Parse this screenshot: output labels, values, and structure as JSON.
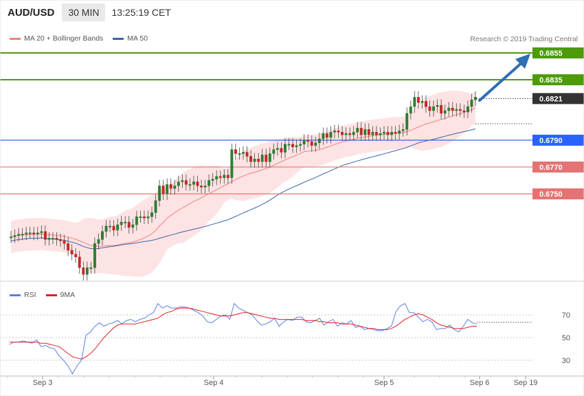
{
  "header": {
    "symbol": "AUD/USD",
    "timeframe": "30 MIN",
    "time": "13:25:19 CET"
  },
  "legend": {
    "items": [
      {
        "label": "MA 20 + Bollinger Bands",
        "color": "#f08080"
      },
      {
        "label": "MA 50",
        "color": "#3a63a8"
      }
    ],
    "copyright": "Research © 2019 Trading Central"
  },
  "rsi_legend": {
    "items": [
      {
        "label": "RSI",
        "color": "#5b7fe0"
      },
      {
        "label": "9MA",
        "color": "#e02020"
      }
    ]
  },
  "colors": {
    "up": "#2e7d32",
    "down": "#c62828",
    "band": "#fde3e3",
    "target": "#4d9a0a",
    "pivot": "#2962ff",
    "support": "#e57373",
    "current": "#333333",
    "arrow": "#2e6fb5"
  },
  "chart_data": [
    {
      "type": "candlestick",
      "title": "AUD/USD 30 MIN",
      "ylim": [
        0.67,
        0.6865
      ],
      "x_ticks": [
        "Sep 3",
        "Sep 4",
        "Sep 5",
        "Sep 6",
        "Sep 19"
      ],
      "levels": [
        {
          "value": "0.6855",
          "kind": "target"
        },
        {
          "value": "0.6835",
          "kind": "target"
        },
        {
          "value": "0.6821",
          "kind": "current"
        },
        {
          "value": "0.6790",
          "kind": "pivot"
        },
        {
          "value": "0.6770",
          "kind": "support"
        },
        {
          "value": "0.6750",
          "kind": "support"
        }
      ],
      "closes": [
        0.6718,
        0.6719,
        0.672,
        0.672,
        0.6721,
        0.6721,
        0.672,
        0.6721,
        0.6722,
        0.6716,
        0.6717,
        0.6717,
        0.6716,
        0.6715,
        0.6713,
        0.6708,
        0.6705,
        0.6703,
        0.6695,
        0.669,
        0.6695,
        0.6695,
        0.6713,
        0.6716,
        0.6722,
        0.6726,
        0.6726,
        0.6723,
        0.6727,
        0.6729,
        0.6729,
        0.6725,
        0.6727,
        0.6733,
        0.6733,
        0.6732,
        0.6733,
        0.6736,
        0.6745,
        0.6756,
        0.675,
        0.6757,
        0.6754,
        0.6756,
        0.6759,
        0.676,
        0.6757,
        0.6757,
        0.6759,
        0.6756,
        0.6755,
        0.6756,
        0.676,
        0.6761,
        0.6763,
        0.6762,
        0.6764,
        0.6762,
        0.6783,
        0.678,
        0.678,
        0.6781,
        0.6778,
        0.6774,
        0.6776,
        0.6774,
        0.6779,
        0.6774,
        0.678,
        0.6783,
        0.6784,
        0.6781,
        0.6787,
        0.6787,
        0.6785,
        0.6786,
        0.6787,
        0.679,
        0.6789,
        0.6786,
        0.6788,
        0.6791,
        0.6795,
        0.6792,
        0.6796,
        0.6797,
        0.6796,
        0.6794,
        0.6795,
        0.6794,
        0.6796,
        0.6799,
        0.6794,
        0.6798,
        0.6794,
        0.6796,
        0.6794,
        0.6795,
        0.6796,
        0.6794,
        0.6796,
        0.6795,
        0.6797,
        0.6798,
        0.681,
        0.6815,
        0.6822,
        0.6818,
        0.6819,
        0.6815,
        0.6812,
        0.6815,
        0.6816,
        0.681,
        0.6812,
        0.6814,
        0.6812,
        0.6813,
        0.6812,
        0.6811,
        0.6815,
        0.682,
        0.6822
      ],
      "ma50_end": 0.68,
      "annotation": "projected rise toward 0.6855"
    },
    {
      "type": "line",
      "title": "RSI",
      "ylim": [
        15,
        90
      ],
      "y_ticks": [
        30,
        50,
        70
      ],
      "series": [
        {
          "name": "RSI",
          "values": [
            44,
            46,
            46,
            47,
            46,
            45,
            48,
            42,
            43,
            41,
            40,
            34,
            30,
            25,
            18,
            25,
            30,
            52,
            55,
            60,
            63,
            60,
            62,
            63,
            65,
            62,
            65,
            66,
            64,
            66,
            67,
            70,
            72,
            80,
            76,
            78,
            76,
            76,
            77,
            77,
            76,
            74,
            72,
            69,
            64,
            63,
            66,
            69,
            70,
            66,
            80,
            76,
            74,
            72,
            70,
            65,
            61,
            62,
            64,
            67,
            60,
            64,
            66,
            65,
            68,
            68,
            64,
            63,
            65,
            67,
            61,
            64,
            66,
            60,
            63,
            62,
            65,
            59,
            60,
            57,
            58,
            57,
            56,
            56,
            58,
            60,
            73,
            78,
            80,
            72,
            72,
            68,
            64,
            66,
            64,
            57,
            58,
            58,
            61,
            57,
            55,
            60,
            66,
            63,
            62
          ]
        },
        {
          "name": "9MA",
          "values": [
            46,
            46,
            46,
            46,
            46,
            46,
            46,
            45,
            45,
            44,
            43,
            42,
            39,
            36,
            33,
            32,
            31,
            33,
            36,
            40,
            45,
            50,
            54,
            58,
            61,
            62,
            62,
            62,
            62,
            63,
            64,
            65,
            66,
            67,
            70,
            72,
            73,
            75,
            76,
            76,
            76,
            75,
            74,
            73,
            72,
            71,
            70,
            69,
            69,
            69,
            70,
            71,
            72,
            72,
            71,
            70,
            69,
            68,
            67,
            67,
            66,
            66,
            66,
            66,
            66,
            66,
            65,
            65,
            65,
            64,
            64,
            63,
            63,
            63,
            62,
            62,
            62,
            61,
            60,
            59,
            58,
            58,
            57,
            57,
            57,
            58,
            60,
            63,
            66,
            68,
            70,
            71,
            70,
            68,
            66,
            63,
            61,
            60,
            59,
            58,
            58,
            58,
            59,
            60,
            60
          ]
        }
      ],
      "x_ticks": [
        "Sep 3",
        "Sep 4",
        "Sep 5",
        "Sep 6",
        "Sep 19"
      ]
    }
  ]
}
